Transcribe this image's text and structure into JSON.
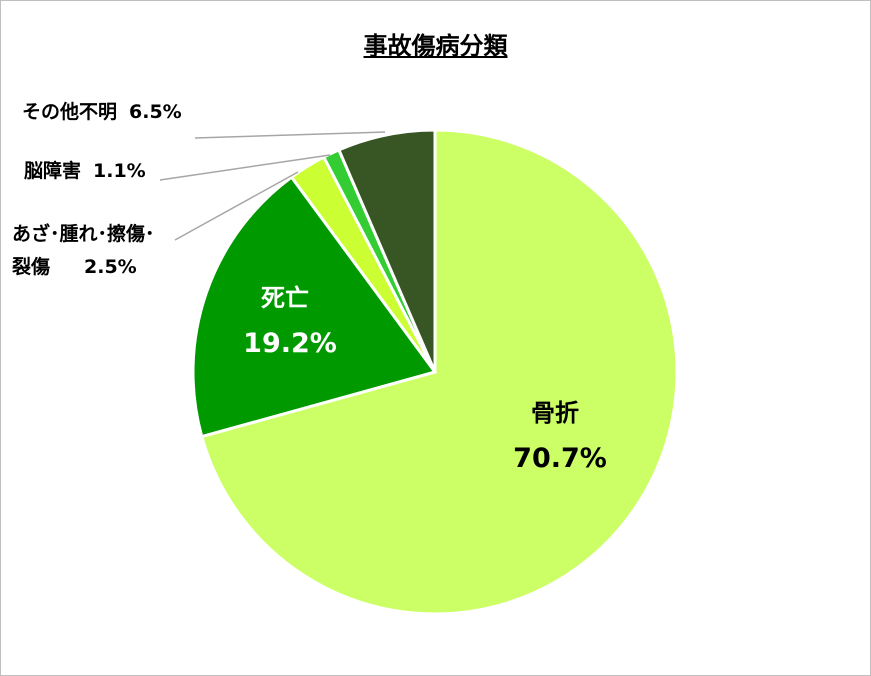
{
  "chart_data": {
    "type": "pie",
    "title": "事故傷病分類",
    "categories": [
      "骨折",
      "死亡",
      "あざ･腫れ･擦傷･\n裂傷",
      "脳障害",
      "その他不明"
    ],
    "values": [
      70.7,
      19.2,
      2.5,
      1.1,
      6.5
    ],
    "value_labels": [
      "70.7%",
      "19.2%",
      "2.5%",
      "1.1%",
      "6.5%"
    ],
    "colors": [
      "#ccff66",
      "#009900",
      "#ccff33",
      "#33cc33",
      "#375623"
    ]
  }
}
